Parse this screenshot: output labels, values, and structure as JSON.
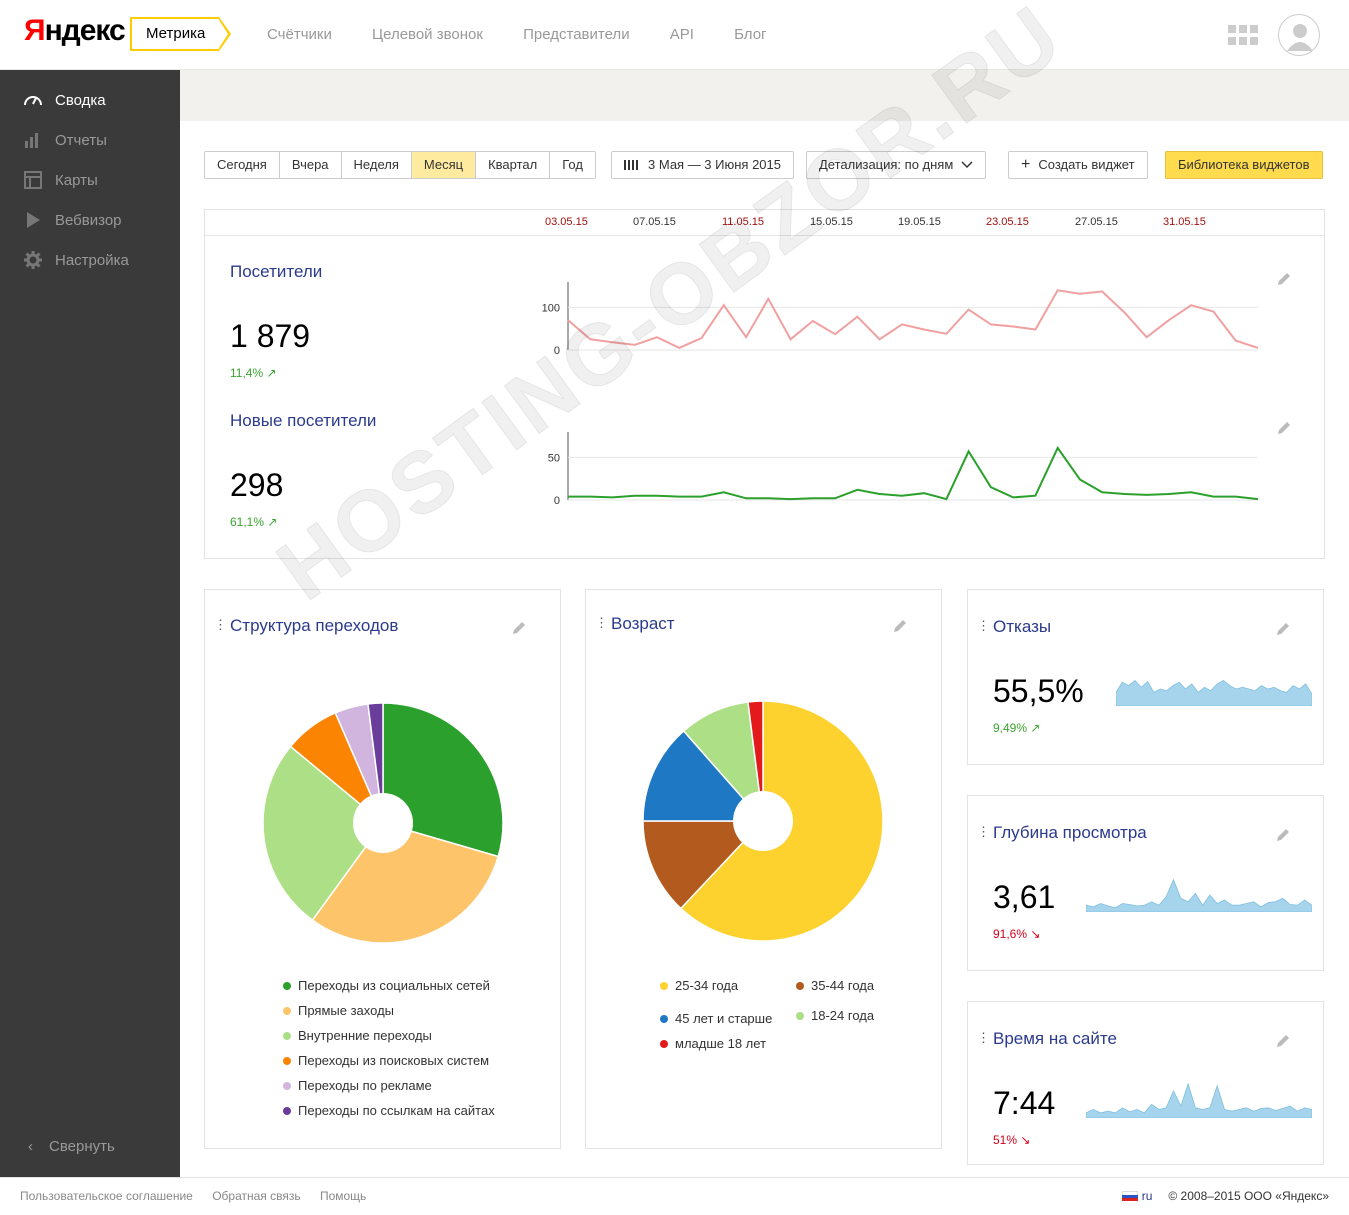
{
  "header": {
    "logo_first": "Я",
    "logo_rest": "ндекс",
    "product": "Метрика",
    "nav": [
      "Счётчики",
      "Целевой звонок",
      "Представители",
      "API",
      "Блог"
    ]
  },
  "sidebar": {
    "items": [
      {
        "label": "Сводка",
        "icon": "speedometer-icon",
        "active": true
      },
      {
        "label": "Отчеты",
        "icon": "bar-chart-icon",
        "active": false
      },
      {
        "label": "Карты",
        "icon": "map-icon",
        "active": false
      },
      {
        "label": "Вебвизор",
        "icon": "play-icon",
        "active": false
      },
      {
        "label": "Настройка",
        "icon": "gear-icon",
        "active": false
      }
    ],
    "collapse": "Свернуть"
  },
  "toolbar": {
    "periods": [
      "Сегодня",
      "Вчера",
      "Неделя",
      "Месяц",
      "Квартал",
      "Год"
    ],
    "selected_period": "Месяц",
    "date_range": "3 Мая — 3 Июня 2015",
    "detail": "Детализация: по дням",
    "create_widget": "Создать виджет",
    "library": "Библиотека виджетов"
  },
  "timeline": {
    "dates": [
      "03.05.15",
      "07.05.15",
      "11.05.15",
      "15.05.15",
      "19.05.15",
      "23.05.15",
      "27.05.15",
      "31.05.15"
    ],
    "weekend_dates": [
      "03.05.15",
      "11.05.15",
      "23.05.15",
      "31.05.15"
    ]
  },
  "visitors": {
    "title": "Посетители",
    "value": "1 879",
    "delta": "11,4% ↗"
  },
  "new_visitors": {
    "title": "Новые посетители",
    "value": "298",
    "delta": "61,1% ↗"
  },
  "traffic": {
    "title": "Структура переходов",
    "legend": [
      {
        "label": "Переходы из социальных сетей",
        "color": "#2ca02c"
      },
      {
        "label": "Прямые заходы",
        "color": "#fdc46a"
      },
      {
        "label": "Внутренние переходы",
        "color": "#addf86"
      },
      {
        "label": "Переходы из поисковых систем",
        "color": "#fc8403"
      },
      {
        "label": "Переходы по рекламе",
        "color": "#d2b5de"
      },
      {
        "label": "Переходы по ссылкам на сайтах",
        "color": "#6a3d9a"
      }
    ]
  },
  "age": {
    "title": "Возраст",
    "legend": [
      {
        "label": "25-34 года",
        "color": "#fdd22f"
      },
      {
        "label": "35-44 года",
        "color": "#b35b1e"
      },
      {
        "label": "45 лет и старше",
        "color": "#1f78c4"
      },
      {
        "label": "18-24 года",
        "color": "#addf86"
      },
      {
        "label": "младше 18 лет",
        "color": "#e31a1c"
      }
    ]
  },
  "bounces": {
    "title": "Отказы",
    "value": "55,5%",
    "delta": "9,49% ↗"
  },
  "depth": {
    "title": "Глубина просмотра",
    "value": "3,61",
    "delta": "91,6% ↘"
  },
  "time": {
    "title": "Время на сайте",
    "value": "7:44",
    "delta": "51% ↘"
  },
  "footer": {
    "links": [
      "Пользовательское соглашение",
      "Обратная связь",
      "Помощь"
    ],
    "lang": "ru",
    "copyright": "© 2008–2015  ООО «Яндекс»"
  },
  "watermark": "HOSTING-OBZOR.RU",
  "chart_data": [
    {
      "type": "line",
      "name": "visitors",
      "x": [
        "03.05.15",
        "04.05.15",
        "05.05.15",
        "06.05.15",
        "07.05.15",
        "08.05.15",
        "09.05.15",
        "10.05.15",
        "11.05.15",
        "12.05.15",
        "13.05.15",
        "14.05.15",
        "15.05.15",
        "16.05.15",
        "17.05.15",
        "18.05.15",
        "19.05.15",
        "20.05.15",
        "21.05.15",
        "22.05.15",
        "23.05.15",
        "24.05.15",
        "25.05.15",
        "26.05.15",
        "27.05.15",
        "28.05.15",
        "29.05.15",
        "30.05.15",
        "31.05.15",
        "01.06.15",
        "02.06.15",
        "03.06.15"
      ],
      "y": [
        70,
        25,
        18,
        12,
        30,
        5,
        28,
        105,
        30,
        120,
        25,
        68,
        37,
        78,
        25,
        60,
        48,
        38,
        95,
        60,
        55,
        48,
        140,
        132,
        137,
        88,
        30,
        70,
        105,
        90,
        22,
        5
      ],
      "yticks": [
        0,
        100
      ],
      "color": "#f0a0a0"
    },
    {
      "type": "line",
      "name": "new_visitors",
      "x": [
        "03.05.15",
        "04.05.15",
        "05.05.15",
        "06.05.15",
        "07.05.15",
        "08.05.15",
        "09.05.15",
        "10.05.15",
        "11.05.15",
        "12.05.15",
        "13.05.15",
        "14.05.15",
        "15.05.15",
        "16.05.15",
        "17.05.15",
        "18.05.15",
        "19.05.15",
        "20.05.15",
        "21.05.15",
        "22.05.15",
        "23.05.15",
        "24.05.15",
        "25.05.15",
        "26.05.15",
        "27.05.15",
        "28.05.15",
        "29.05.15",
        "30.05.15",
        "31.05.15",
        "01.06.15",
        "02.06.15",
        "03.06.15"
      ],
      "y": [
        4,
        4,
        3,
        5,
        5,
        4,
        4,
        9,
        2,
        2,
        1,
        2,
        2,
        12,
        7,
        5,
        8,
        1,
        57,
        15,
        3,
        5,
        61,
        24,
        9,
        7,
        6,
        7,
        9,
        4,
        4,
        1
      ],
      "yticks": [
        0,
        50
      ],
      "color": "#2ca02c"
    },
    {
      "type": "pie",
      "name": "traffic",
      "labels": [
        "Переходы из социальных сетей",
        "Прямые заходы",
        "Внутренние переходы",
        "Переходы из поисковых систем",
        "Переходы по рекламе",
        "Переходы по ссылкам на сайтах"
      ],
      "values": [
        29.5,
        30.5,
        26,
        7.5,
        4.5,
        2
      ]
    },
    {
      "type": "pie",
      "name": "age",
      "labels": [
        "25-34 года",
        "35-44 года",
        "45 лет и старше",
        "18-24 года",
        "младше 18 лет"
      ],
      "values": [
        62,
        13,
        13.5,
        9.5,
        2
      ]
    },
    {
      "type": "area",
      "name": "bounces_spark",
      "y": [
        40,
        70,
        60,
        75,
        55,
        72,
        40,
        50,
        45,
        60,
        70,
        50,
        65,
        40,
        55,
        45,
        65,
        75,
        60,
        50,
        55,
        50,
        45,
        60,
        50,
        55,
        45,
        40,
        60,
        50,
        65,
        35
      ],
      "color": "#a6d4ec"
    },
    {
      "type": "area",
      "name": "depth_spark",
      "y": [
        20,
        15,
        25,
        18,
        12,
        25,
        22,
        18,
        20,
        30,
        20,
        45,
        95,
        40,
        30,
        55,
        20,
        50,
        25,
        35,
        20,
        20,
        25,
        30,
        15,
        28,
        30,
        40,
        22,
        20,
        35,
        20
      ],
      "color": "#a6d4ec"
    },
    {
      "type": "area",
      "name": "time_spark",
      "y": [
        15,
        25,
        15,
        20,
        15,
        30,
        18,
        25,
        15,
        40,
        25,
        30,
        80,
        35,
        100,
        30,
        25,
        30,
        95,
        25,
        20,
        25,
        30,
        20,
        28,
        30,
        22,
        28,
        35,
        20,
        30,
        25
      ],
      "color": "#a6d4ec"
    }
  ]
}
